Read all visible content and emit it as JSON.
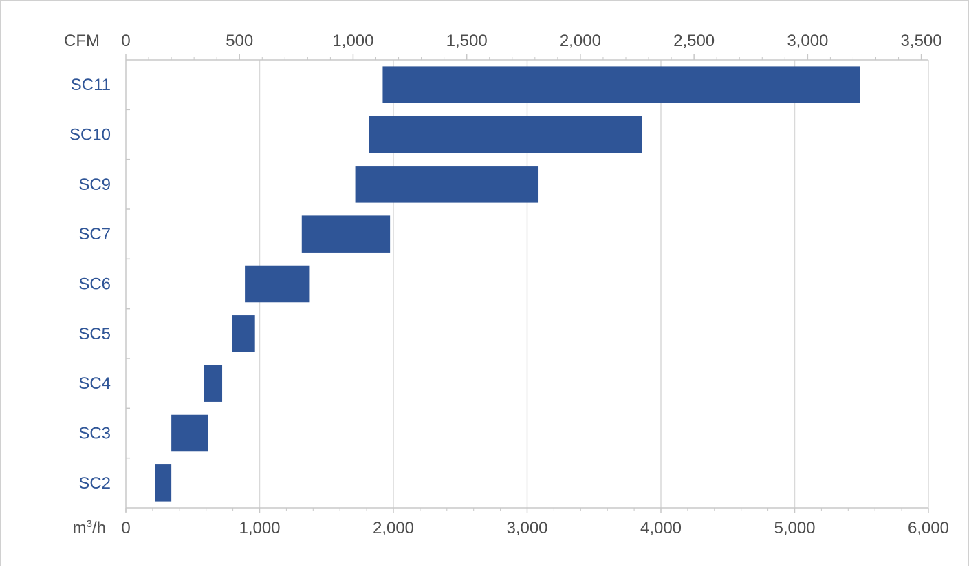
{
  "chart_data": {
    "type": "bar",
    "orientation": "horizontal",
    "bar_style": "floating-range",
    "categories": [
      "SC11",
      "SC10",
      "SC9",
      "SC7",
      "SC6",
      "SC5",
      "SC4",
      "SC3",
      "SC2"
    ],
    "series": [
      {
        "ranges_m3h": [
          [
            1920,
            5490
          ],
          [
            1815,
            3860
          ],
          [
            1715,
            3085
          ],
          [
            1315,
            1975
          ],
          [
            890,
            1375
          ],
          [
            795,
            965
          ],
          [
            585,
            720
          ],
          [
            340,
            615
          ],
          [
            220,
            340
          ]
        ]
      }
    ],
    "bottom_axis": {
      "unit": "m³/h",
      "unit_base": "m",
      "unit_sup": "3",
      "unit_tail": "/h",
      "range": [
        0,
        6000
      ],
      "ticks": [
        0,
        1000,
        2000,
        3000,
        4000,
        5000,
        6000
      ],
      "tick_labels": [
        "0",
        "1,000",
        "2,000",
        "3,000",
        "4,000",
        "5,000",
        "6,000"
      ]
    },
    "top_axis": {
      "unit": "CFM",
      "range": [
        0,
        3531.5
      ],
      "ticks": [
        0,
        500,
        1000,
        1500,
        2000,
        2500,
        3000,
        3500
      ],
      "tick_labels": [
        "0",
        "500",
        "1,000",
        "1,500",
        "2,000",
        "2,500",
        "3,000",
        "3,500"
      ]
    },
    "grid": true,
    "colors": {
      "bar": "#2f5597",
      "category_label": "#2f5597",
      "tick_label": "#4d4d4d",
      "grid": "#d9d9d9",
      "axis": "#c8c8c8"
    }
  }
}
